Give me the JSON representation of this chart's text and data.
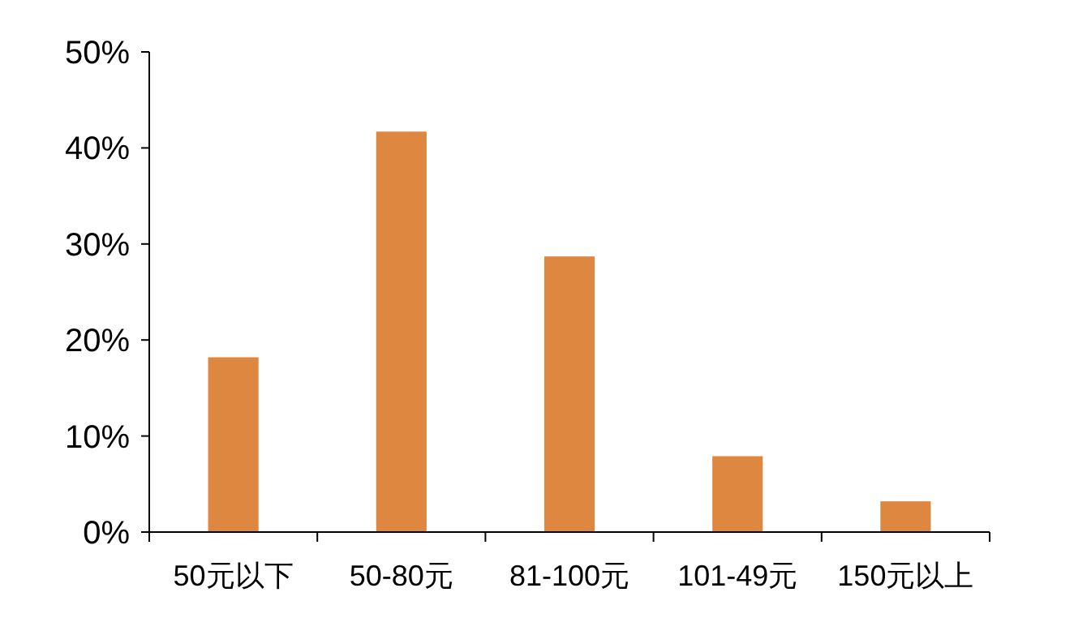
{
  "chart_data": {
    "type": "bar",
    "categories": [
      "50元以下",
      "50-80元",
      "81-100元",
      "101-49元",
      "150元以上"
    ],
    "values": [
      18.2,
      41.7,
      28.7,
      7.9,
      3.2
    ],
    "color": "#dd8740",
    "ylim": [
      0,
      50
    ],
    "yticks": [
      {
        "value": 0,
        "label": "0%"
      },
      {
        "value": 10,
        "label": "10%"
      },
      {
        "value": 20,
        "label": "20%"
      },
      {
        "value": 30,
        "label": "30%"
      },
      {
        "value": 40,
        "label": "40%"
      },
      {
        "value": 50,
        "label": "50%"
      }
    ],
    "grid": false
  }
}
